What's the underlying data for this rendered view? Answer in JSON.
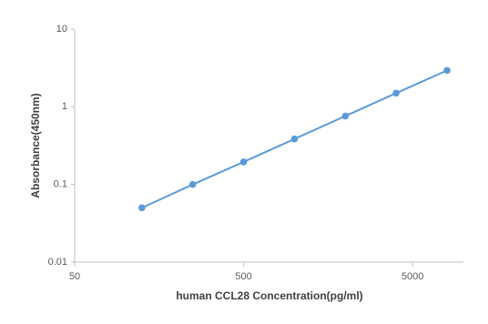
{
  "chart_data": {
    "type": "line",
    "x_label": "human  CCL28  Concentration(pg/ml)",
    "y_label": "Absorbance(450nm)",
    "x": [
      125,
      250,
      500,
      1000,
      2000,
      4000,
      8000
    ],
    "series": [
      {
        "color": "#5b9bd5",
        "values": [
          0.05,
          0.1,
          0.195,
          0.385,
          0.76,
          1.5,
          2.94
        ]
      }
    ],
    "xlim": [
      50,
      10000
    ],
    "xticks": [
      50,
      500,
      5000
    ],
    "xscale": "log",
    "ylim": [
      0.01,
      10
    ],
    "yticks": [
      0.01,
      0.1,
      1,
      10
    ],
    "yscale": "log"
  }
}
